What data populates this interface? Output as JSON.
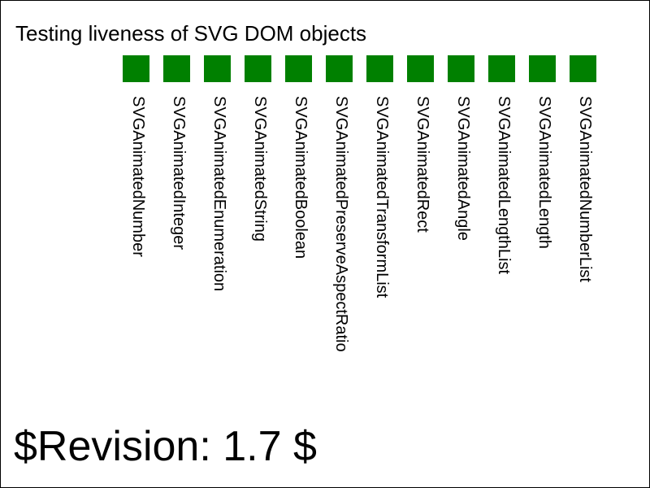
{
  "title": "Testing liveness of SVG DOM objects",
  "pass_color": "#008000",
  "tests": [
    {
      "label": "SVGAnimatedNumber",
      "status": "pass"
    },
    {
      "label": "SVGAnimatedInteger",
      "status": "pass"
    },
    {
      "label": "SVGAnimatedEnumeration",
      "status": "pass"
    },
    {
      "label": "SVGAnimatedString",
      "status": "pass"
    },
    {
      "label": "SVGAnimatedBoolean",
      "status": "pass"
    },
    {
      "label": "SVGAnimatedPreserveAspectRatio",
      "status": "pass"
    },
    {
      "label": "SVGAnimatedTransformList",
      "status": "pass"
    },
    {
      "label": "SVGAnimatedRect",
      "status": "pass"
    },
    {
      "label": "SVGAnimatedAngle",
      "status": "pass"
    },
    {
      "label": "SVGAnimatedLengthList",
      "status": "pass"
    },
    {
      "label": "SVGAnimatedLength",
      "status": "pass"
    },
    {
      "label": "SVGAnimatedNumberList",
      "status": "pass"
    }
  ],
  "revision": "$Revision: 1.7 $"
}
